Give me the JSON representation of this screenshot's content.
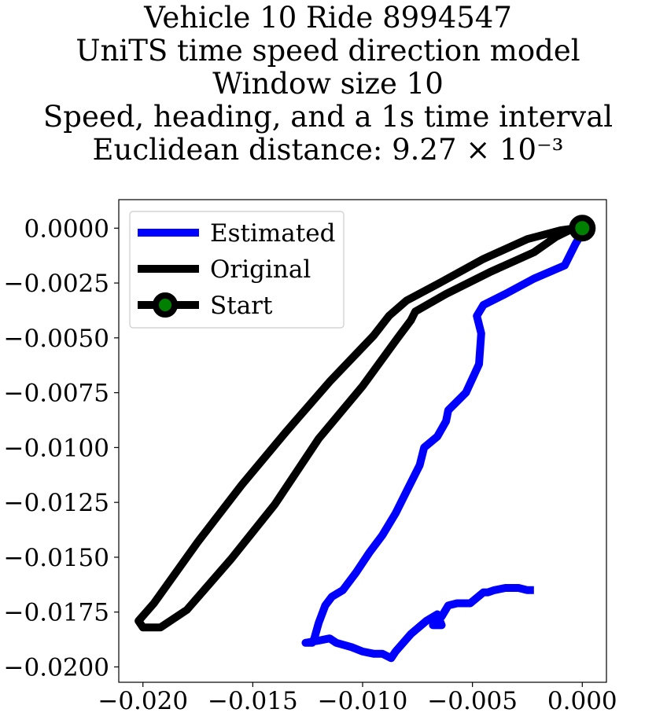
{
  "chart_data": {
    "type": "line",
    "title_lines": [
      "Vehicle 10 Ride 8994547",
      "UniTS time speed direction model",
      "Window size 10",
      "Speed, heading, and a 1s time interval",
      "Euclidean distance: 9.27 × 10⁻³"
    ],
    "xlabel": "",
    "ylabel": "",
    "xlim": [
      -0.0211,
      0.0011
    ],
    "ylim": [
      -0.0207,
      0.0013
    ],
    "xticks": [
      -0.02,
      -0.015,
      -0.01,
      -0.005,
      0.0
    ],
    "xtick_labels": [
      "−0.020",
      "−0.015",
      "−0.010",
      "−0.005",
      "0.000"
    ],
    "yticks": [
      0.0,
      -0.0025,
      -0.005,
      -0.0075,
      -0.01,
      -0.0125,
      -0.015,
      -0.0175,
      -0.02
    ],
    "ytick_labels": [
      "0.0000",
      "−0.0025",
      "−0.0050",
      "−0.0075",
      "−0.0100",
      "−0.0125",
      "−0.0150",
      "−0.0175",
      "−0.0200"
    ],
    "grid": false,
    "legend_position": "top-left",
    "series": [
      {
        "name": "Estimated",
        "color": "#0000ff",
        "x": [
          0.0,
          -0.0003,
          -0.0008,
          -0.0022,
          -0.0035,
          -0.0045,
          -0.0048,
          -0.0046,
          -0.0047,
          -0.0053,
          -0.0061,
          -0.0062,
          -0.0066,
          -0.0072,
          -0.0074,
          -0.0079,
          -0.0085,
          -0.0091,
          -0.0097,
          -0.0103,
          -0.0109,
          -0.0114,
          -0.0117,
          -0.012,
          -0.0122,
          -0.0123,
          -0.0126,
          -0.012,
          -0.0115,
          -0.0112,
          -0.0105,
          -0.01,
          -0.0095,
          -0.0091,
          -0.0087,
          -0.0085,
          -0.0078,
          -0.0071,
          -0.0066,
          -0.0064,
          -0.0068,
          -0.0064,
          -0.0061,
          -0.0057,
          -0.0051,
          -0.0045,
          -0.0043,
          -0.004,
          -0.0035,
          -0.0032,
          -0.0029,
          -0.0025,
          -0.0022
        ],
        "y": [
          -0.0002,
          -0.0007,
          -0.0017,
          -0.0023,
          -0.003,
          -0.0035,
          -0.004,
          -0.0048,
          -0.0062,
          -0.0075,
          -0.0083,
          -0.0088,
          -0.0095,
          -0.01,
          -0.0108,
          -0.0118,
          -0.013,
          -0.014,
          -0.0148,
          -0.0157,
          -0.0165,
          -0.0168,
          -0.0172,
          -0.018,
          -0.0187,
          -0.0189,
          -0.0189,
          -0.0188,
          -0.0187,
          -0.0189,
          -0.0191,
          -0.0193,
          -0.0194,
          -0.0194,
          -0.0196,
          -0.0193,
          -0.0185,
          -0.0179,
          -0.0176,
          -0.0181,
          -0.0181,
          -0.0177,
          -0.0172,
          -0.0171,
          -0.0171,
          -0.0166,
          -0.0166,
          -0.0165,
          -0.0164,
          -0.0164,
          -0.0164,
          -0.0165,
          -0.0165
        ]
      },
      {
        "name": "Original",
        "color": "#000000",
        "x": [
          0.0,
          -0.0003,
          -0.001,
          -0.0025,
          -0.0045,
          -0.0065,
          -0.008,
          -0.0088,
          -0.0095,
          -0.0115,
          -0.0135,
          -0.0155,
          -0.0175,
          -0.0195,
          -0.0202,
          -0.02,
          -0.0192,
          -0.018,
          -0.016,
          -0.014,
          -0.012,
          -0.01,
          -0.0084,
          -0.0078,
          -0.0076,
          -0.0062,
          -0.0042,
          -0.0022,
          -0.0012,
          -0.0006,
          0.0
        ],
        "y": [
          0.0,
          0.0,
          -0.0001,
          -0.0005,
          -0.0014,
          -0.0025,
          -0.0033,
          -0.004,
          -0.0049,
          -0.007,
          -0.0093,
          -0.0117,
          -0.0143,
          -0.0171,
          -0.0179,
          -0.0182,
          -0.0182,
          -0.0174,
          -0.0151,
          -0.0126,
          -0.0096,
          -0.0072,
          -0.005,
          -0.0042,
          -0.0038,
          -0.003,
          -0.002,
          -0.0011,
          -0.0004,
          -0.0001,
          0.0
        ]
      }
    ],
    "start_point": {
      "name": "Start",
      "x": 0.0,
      "y": 0.0,
      "marker_color": "#008000",
      "edge_color": "#000000"
    }
  }
}
